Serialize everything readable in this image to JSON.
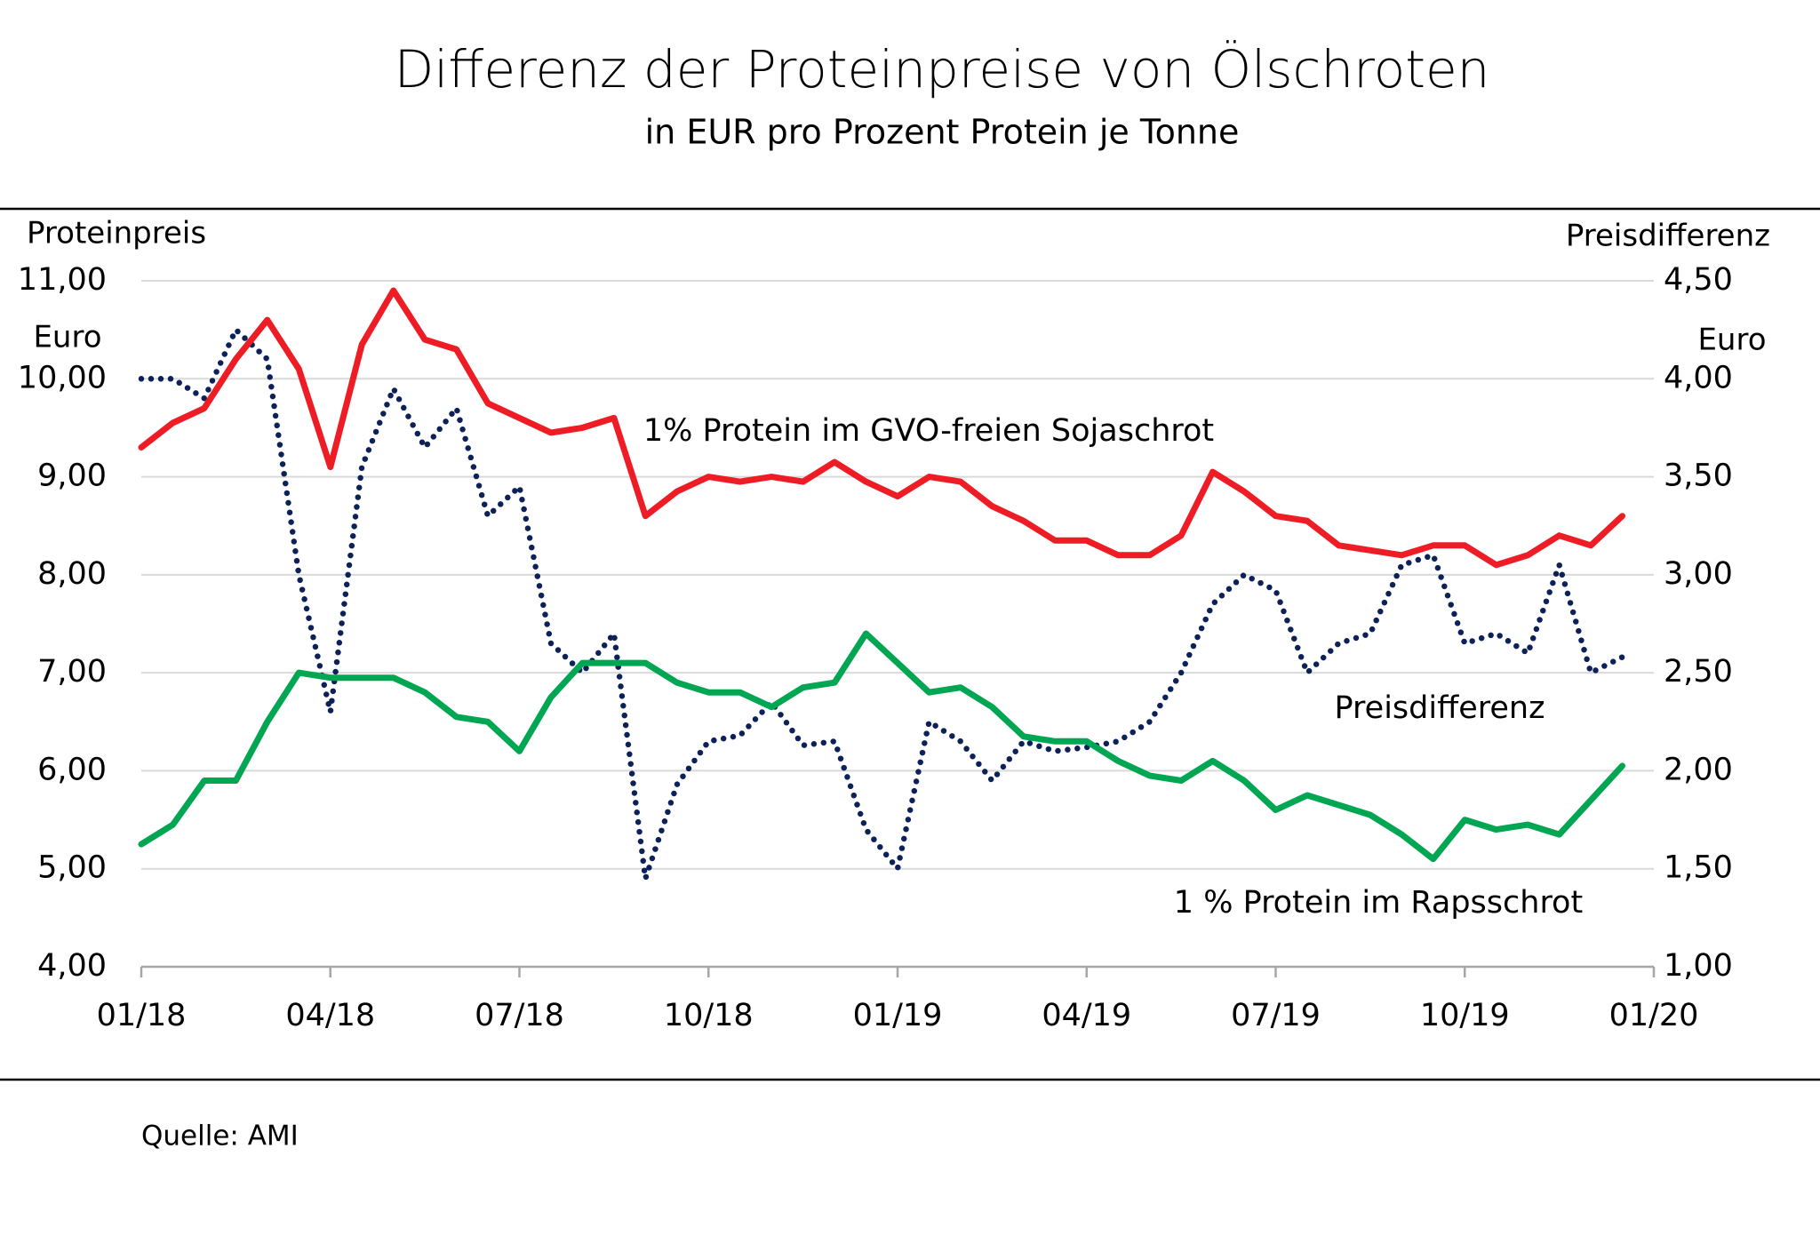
{
  "chart_data": {
    "type": "line",
    "title": "Differenz der Proteinpreise von Ölschroten",
    "subtitle": "in EUR pro Prozent Protein je Tonne",
    "ylabel": "Proteinpreis",
    "yunit": "Euro",
    "y2label": "Preisdifferenz",
    "y2unit": "Euro",
    "source": "Quelle: AMI",
    "grid": true,
    "categories": [
      "01/18",
      null,
      null,
      null,
      null,
      null,
      "04/18",
      null,
      null,
      null,
      null,
      null,
      "07/18",
      null,
      null,
      null,
      null,
      null,
      "10/18",
      null,
      null,
      null,
      null,
      null,
      "01/19",
      null,
      null,
      null,
      null,
      null,
      "04/19",
      null,
      null,
      null,
      null,
      null,
      "07/19",
      null,
      null,
      null,
      null,
      null,
      "10/19",
      null,
      null,
      null,
      null,
      null,
      "01/20"
    ],
    "ylim": [
      4,
      11
    ],
    "yticks": [
      {
        "value": 4,
        "label": "4,00"
      },
      {
        "value": 5,
        "label": "5,00"
      },
      {
        "value": 6,
        "label": "6,00"
      },
      {
        "value": 7,
        "label": "7,00"
      },
      {
        "value": 8,
        "label": "8,00"
      },
      {
        "value": 9,
        "label": "9,00"
      },
      {
        "value": 10,
        "label": "10,00"
      },
      {
        "value": 11,
        "label": "11,00"
      }
    ],
    "y2lim": [
      1,
      4.5
    ],
    "y2ticks": [
      {
        "value": 1,
        "label": "1,00"
      },
      {
        "value": 1.5,
        "label": "1,50"
      },
      {
        "value": 2,
        "label": "2,00"
      },
      {
        "value": 2.5,
        "label": "2,50"
      },
      {
        "value": 3,
        "label": "3,00"
      },
      {
        "value": 3.5,
        "label": "3,50"
      },
      {
        "value": 4,
        "label": "4,00"
      },
      {
        "value": 4.5,
        "label": "4,50"
      }
    ],
    "series": [
      {
        "name": "1% Protein im GVO-freien Sojaschrot",
        "color": "#ee1c25",
        "style": "solid",
        "values": [
          9.3,
          9.55,
          9.7,
          10.2,
          10.6,
          10.1,
          9.1,
          10.35,
          10.9,
          10.4,
          10.3,
          9.75,
          9.6,
          9.45,
          9.5,
          9.6,
          8.6,
          8.85,
          9.0,
          8.95,
          9.0,
          8.95,
          9.15,
          8.95,
          8.8,
          9.0,
          8.95,
          8.7,
          8.55,
          8.35,
          8.35,
          8.2,
          8.2,
          8.4,
          9.05,
          8.85,
          8.6,
          8.55,
          8.3,
          8.25,
          8.2,
          8.3,
          8.3,
          8.1,
          8.2,
          8.4,
          8.3,
          8.6,
          null
        ]
      },
      {
        "name": "Preisdifferenz",
        "color": "#0d2159",
        "style": "dotted",
        "axis": "y2",
        "values": [
          4.0,
          4.0,
          3.9,
          4.25,
          4.1,
          3.0,
          2.3,
          3.55,
          3.95,
          3.65,
          3.85,
          3.3,
          3.45,
          2.65,
          2.5,
          2.7,
          1.45,
          1.93,
          2.15,
          2.18,
          2.35,
          2.13,
          2.15,
          1.7,
          1.5,
          2.25,
          2.15,
          1.95,
          2.15,
          2.1,
          2.12,
          2.15,
          2.25,
          2.5,
          2.85,
          3.0,
          2.92,
          2.5,
          2.65,
          2.7,
          3.05,
          3.1,
          2.65,
          2.7,
          2.6,
          3.05,
          2.5,
          2.58,
          null
        ]
      },
      {
        "name": "1 % Protein im Rapsschrot",
        "color": "#00a651",
        "style": "solid",
        "values": [
          5.25,
          5.45,
          5.9,
          5.9,
          6.5,
          7.0,
          6.95,
          6.95,
          6.95,
          6.8,
          6.55,
          6.5,
          6.2,
          6.75,
          7.1,
          7.1,
          7.1,
          6.9,
          6.8,
          6.8,
          6.65,
          6.85,
          6.9,
          7.4,
          7.1,
          6.8,
          6.85,
          6.65,
          6.35,
          6.3,
          6.3,
          6.1,
          5.95,
          5.9,
          6.1,
          5.9,
          5.6,
          5.75,
          5.65,
          5.55,
          5.35,
          5.1,
          5.5,
          5.4,
          5.45,
          5.35,
          5.7,
          6.05,
          null
        ]
      }
    ]
  }
}
